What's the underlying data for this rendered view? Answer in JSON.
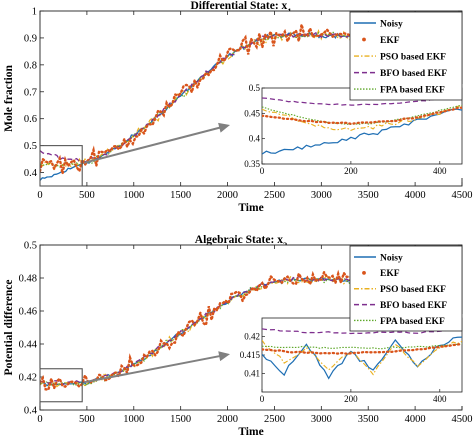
{
  "colors": {
    "noisy": "#1f6fb4",
    "ekf": "#d9541b",
    "pso": "#e9b020",
    "bfo": "#7e2f8e",
    "fpa": "#5fa82b",
    "arrow": "#808080"
  },
  "chart_data": [
    {
      "type": "line",
      "title_main": "Differential State: x",
      "title_sub": "1",
      "xlabel": "Time",
      "ylabel": "Mole fraction",
      "xlim": [
        0,
        4500
      ],
      "ylim": [
        0.35,
        1.0
      ],
      "xticks": [
        0,
        500,
        1000,
        1500,
        2000,
        2500,
        3000,
        3500,
        4000,
        4500
      ],
      "xtick_labels": [
        "0",
        "500",
        "1000",
        "1500",
        "2000",
        "2500",
        "3000",
        "3500",
        "4000",
        "4500"
      ],
      "yticks": [
        0.4,
        0.5,
        0.6,
        0.7,
        0.8,
        0.9,
        1.0
      ],
      "ytick_labels": [
        "0.4",
        "0.5",
        "0.6",
        "0.7",
        "0.8",
        "0.9",
        "1"
      ],
      "legend": [
        "Noisy",
        "EKF",
        "PSO based EKF",
        "BFO based EKF",
        "FPA based EKF"
      ],
      "legend_placement": "top-right",
      "trend": {
        "start": 0.43,
        "plateau": 0.91,
        "t_start": 300,
        "t_end": 2600
      },
      "zoom_box": {
        "x": [
          0,
          450
        ],
        "y": [
          0.35,
          0.5
        ]
      },
      "inset": {
        "xlim": [
          0,
          450
        ],
        "ylim": [
          0.35,
          0.5
        ],
        "xticks": [
          0,
          200,
          400
        ],
        "xtick_labels": [
          "0",
          "200",
          "400"
        ],
        "yticks": [
          0.35,
          0.4,
          0.45,
          0.5
        ],
        "ytick_labels": [
          "0.35",
          "0.4",
          "0.45",
          "0.5"
        ],
        "series": [
          {
            "name": "Noisy",
            "x": [
              0,
              50,
              100,
              150,
              200,
              250,
              300,
              350,
              400,
              450
            ],
            "y": [
              0.37,
              0.375,
              0.385,
              0.39,
              0.4,
              0.41,
              0.42,
              0.435,
              0.45,
              0.46
            ]
          },
          {
            "name": "EKF",
            "x": [
              0,
              50,
              100,
              150,
              200,
              250,
              300,
              350,
              400,
              450
            ],
            "y": [
              0.445,
              0.44,
              0.435,
              0.432,
              0.43,
              0.432,
              0.436,
              0.442,
              0.452,
              0.462
            ]
          },
          {
            "name": "PSO based EKF",
            "x": [
              0,
              50,
              100,
              150,
              200,
              250,
              300,
              350,
              400,
              450
            ],
            "y": [
              0.46,
              0.445,
              0.43,
              0.42,
              0.418,
              0.422,
              0.43,
              0.44,
              0.45,
              0.465
            ]
          },
          {
            "name": "BFO based EKF",
            "x": [
              0,
              50,
              100,
              150,
              200,
              250,
              300,
              350,
              400,
              450
            ],
            "y": [
              0.48,
              0.475,
              0.47,
              0.468,
              0.467,
              0.468,
              0.47,
              0.474,
              0.478,
              0.483
            ]
          },
          {
            "name": "FPA based EKF",
            "x": [
              0,
              50,
              100,
              150,
              200,
              250,
              300,
              350,
              400,
              450
            ],
            "y": [
              0.462,
              0.45,
              0.44,
              0.432,
              0.428,
              0.43,
              0.436,
              0.445,
              0.455,
              0.466
            ]
          }
        ]
      }
    },
    {
      "type": "line",
      "title_main": "Algebraic State: x",
      "title_sub": "2",
      "xlabel": "Time",
      "ylabel": "Potential difference",
      "xlim": [
        0,
        4500
      ],
      "ylim": [
        0.4,
        0.5
      ],
      "xticks": [
        0,
        500,
        1000,
        1500,
        2000,
        2500,
        3000,
        3500,
        4000,
        4500
      ],
      "xtick_labels": [
        "0",
        "500",
        "1000",
        "1500",
        "2000",
        "2500",
        "3000",
        "3500",
        "4000",
        "4500"
      ],
      "yticks": [
        0.4,
        0.42,
        0.44,
        0.46,
        0.48,
        0.5
      ],
      "ytick_labels": [
        "0.4",
        "0.42",
        "0.44",
        "0.46",
        "0.48",
        "0.5"
      ],
      "legend": [
        "Noisy",
        "EKF",
        "PSO based EKF",
        "BFO based EKF",
        "FPA based EKF"
      ],
      "legend_placement": "top-right",
      "trend": {
        "start": 0.416,
        "plateau": 0.479,
        "t_start": 350,
        "t_end": 2700
      },
      "zoom_box": {
        "x": [
          0,
          450
        ],
        "y": [
          0.405,
          0.425
        ]
      },
      "inset": {
        "xlim": [
          0,
          450
        ],
        "ylim": [
          0.405,
          0.425
        ],
        "xticks": [
          0,
          200,
          400
        ],
        "xtick_labels": [
          "0",
          "200",
          "400"
        ],
        "yticks": [
          0.41,
          0.415,
          0.42
        ],
        "ytick_labels": [
          "0.41",
          "0.415",
          "0.42"
        ],
        "series": [
          {
            "name": "Noisy",
            "x": [
              0,
              50,
              100,
              150,
              200,
              250,
              300,
              350,
              400,
              450
            ],
            "y": [
              0.415,
              0.41,
              0.418,
              0.409,
              0.416,
              0.411,
              0.419,
              0.412,
              0.418,
              0.42
            ]
          },
          {
            "name": "EKF",
            "x": [
              0,
              50,
              100,
              150,
              200,
              250,
              300,
              350,
              400,
              450
            ],
            "y": [
              0.4165,
              0.416,
              0.4157,
              0.4155,
              0.4155,
              0.4157,
              0.416,
              0.4165,
              0.4172,
              0.418
            ]
          },
          {
            "name": "PSO based EKF",
            "x": [
              0,
              50,
              100,
              150,
              200,
              250,
              300,
              350,
              400,
              450
            ],
            "y": [
              0.419,
              0.413,
              0.417,
              0.411,
              0.416,
              0.41,
              0.418,
              0.412,
              0.417,
              0.419
            ]
          },
          {
            "name": "BFO based EKF",
            "x": [
              0,
              50,
              100,
              150,
              200,
              250,
              300,
              350,
              400,
              450
            ],
            "y": [
              0.422,
              0.4215,
              0.421,
              0.4212,
              0.4208,
              0.421,
              0.4212,
              0.421,
              0.4215,
              0.422
            ]
          },
          {
            "name": "FPA based EKF",
            "x": [
              0,
              50,
              100,
              150,
              200,
              250,
              300,
              350,
              400,
              450
            ],
            "y": [
              0.4175,
              0.417,
              0.4172,
              0.4168,
              0.417,
              0.4168,
              0.417,
              0.4172,
              0.4175,
              0.418
            ]
          }
        ]
      }
    }
  ]
}
